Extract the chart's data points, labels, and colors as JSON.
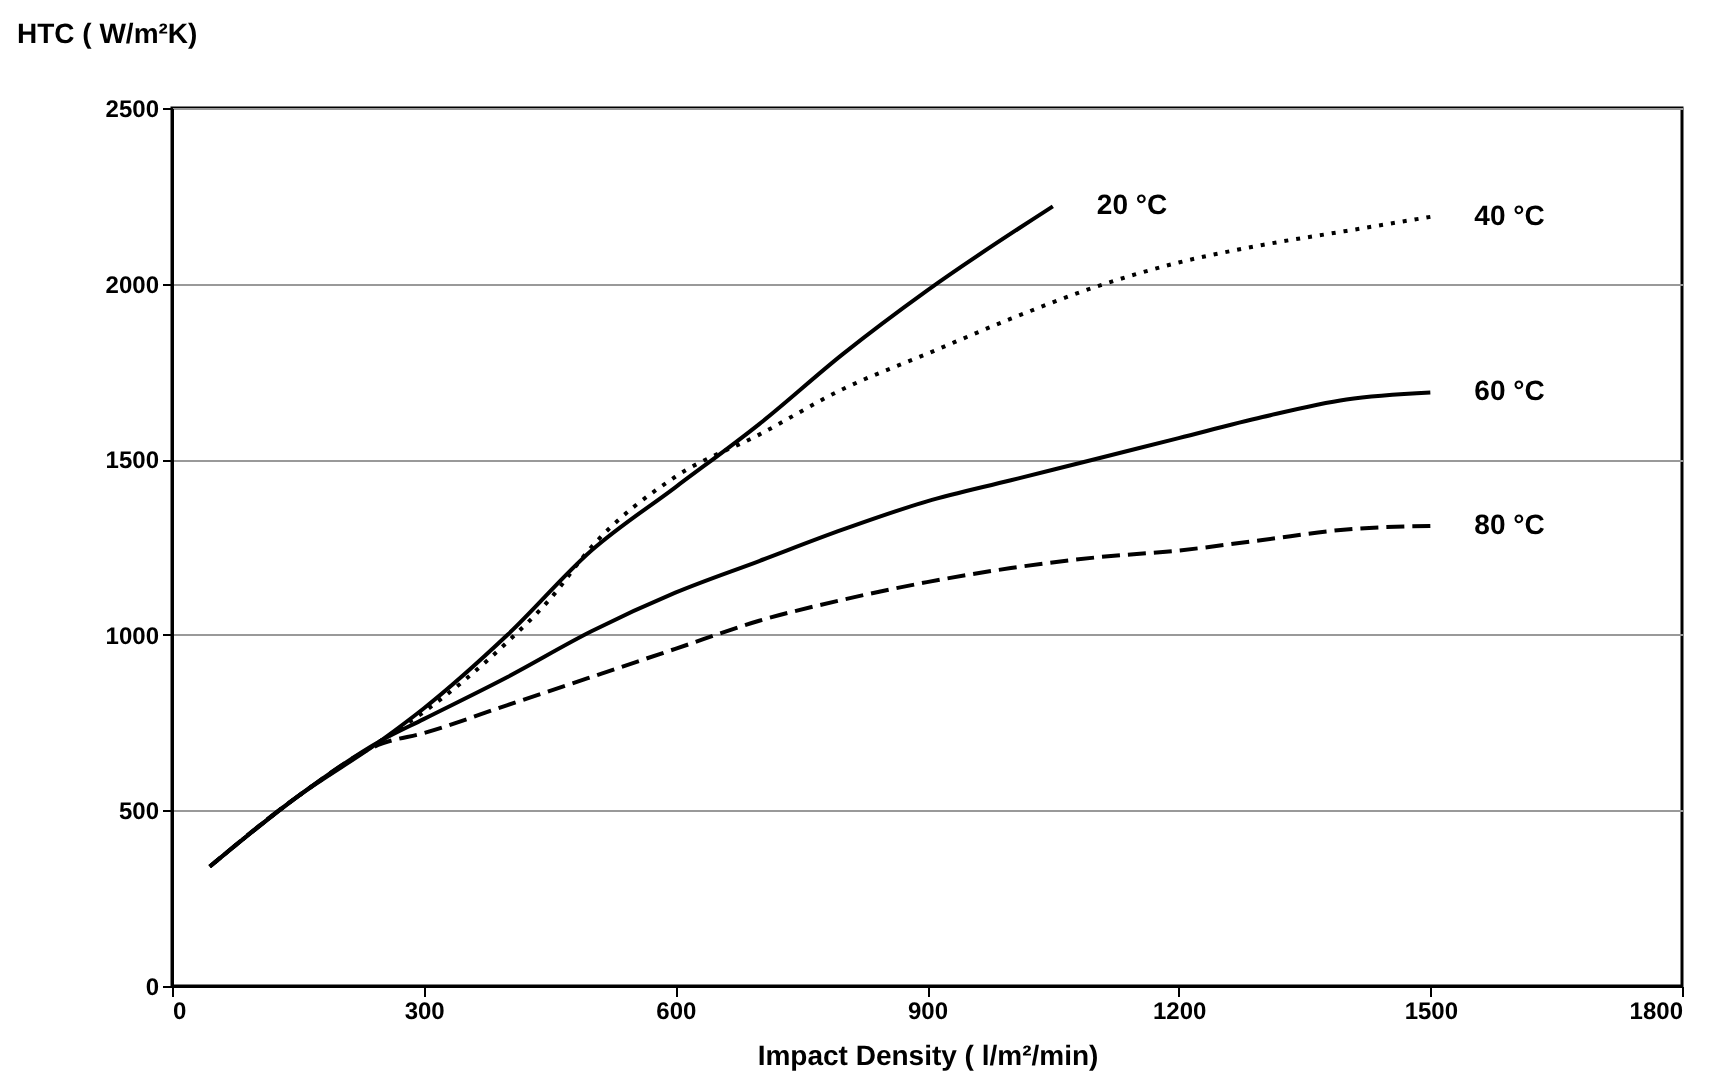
{
  "chart_data": {
    "type": "line",
    "xlabel": "Impact Density ( l/m²/min)",
    "ylabel": "HTC ( W/m²K)",
    "xlim": [
      0,
      1800
    ],
    "xticks": [
      0,
      300,
      600,
      900,
      1200,
      1500,
      1800
    ],
    "ylim": [
      0,
      2500
    ],
    "yticks": [
      0,
      500,
      1000,
      1500,
      2000,
      2500
    ],
    "grid": "y",
    "marker": "none",
    "series": [
      {
        "name": "20 °C",
        "color": "#000000",
        "line_style": "solid",
        "x": [
          45,
          150,
          250,
          300,
          400,
          500,
          600,
          700,
          800,
          900,
          1050
        ],
        "values": [
          340,
          540,
          700,
          790,
          1000,
          1240,
          1420,
          1600,
          1800,
          1980,
          2220
        ]
      },
      {
        "name": "40 °C",
        "color": "#000000",
        "line_style": "dotted",
        "x": [
          45,
          150,
          250,
          300,
          400,
          450,
          500,
          600,
          700,
          800,
          900,
          1000,
          1100,
          1200,
          1300,
          1400,
          1500
        ],
        "values": [
          340,
          540,
          700,
          780,
          980,
          1100,
          1250,
          1450,
          1570,
          1700,
          1800,
          1900,
          1990,
          2060,
          2110,
          2150,
          2190
        ]
      },
      {
        "name": "60 °C",
        "color": "#000000",
        "line_style": "solid",
        "x": [
          45,
          150,
          250,
          300,
          400,
          500,
          600,
          700,
          800,
          900,
          1000,
          1100,
          1200,
          1300,
          1400,
          1500
        ],
        "values": [
          340,
          540,
          700,
          760,
          880,
          1010,
          1120,
          1210,
          1300,
          1380,
          1440,
          1500,
          1560,
          1620,
          1670,
          1690
        ]
      },
      {
        "name": "80 °C",
        "color": "#000000",
        "line_style": "dashed",
        "x": [
          45,
          150,
          250,
          300,
          400,
          500,
          600,
          700,
          800,
          900,
          1000,
          1100,
          1200,
          1300,
          1400,
          1500
        ],
        "values": [
          340,
          540,
          690,
          720,
          800,
          880,
          960,
          1040,
          1100,
          1150,
          1190,
          1220,
          1240,
          1270,
          1300,
          1310
        ]
      }
    ]
  }
}
